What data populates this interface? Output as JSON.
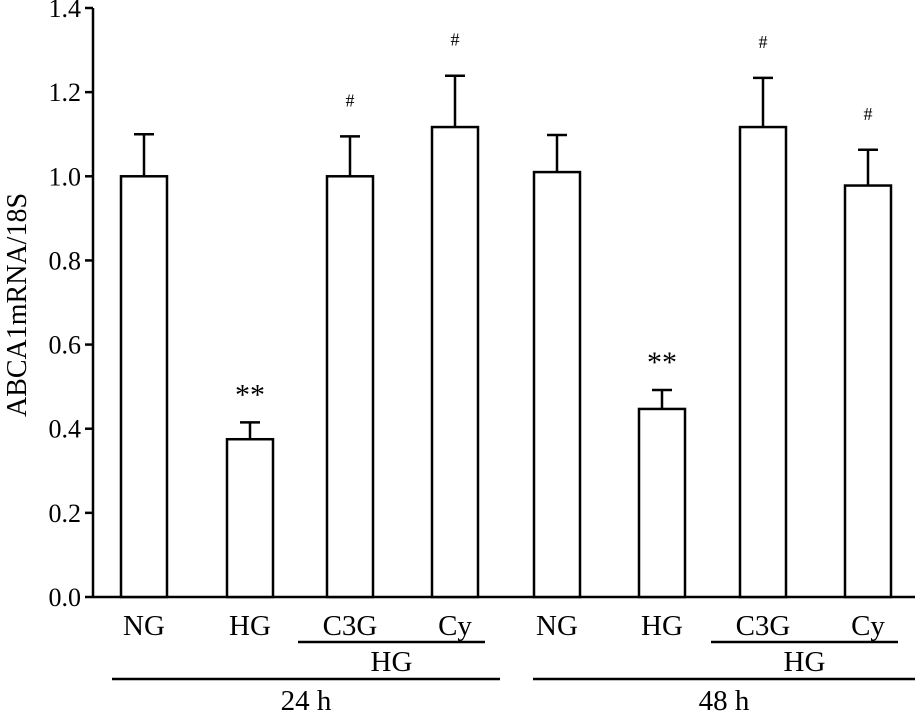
{
  "chart_data": {
    "type": "bar",
    "ylabel": "ABCA1mRNA/18S",
    "ylim": [
      0,
      1.4
    ],
    "yticks": [
      "0.0",
      "0.2",
      "0.4",
      "0.6",
      "0.8",
      "1.0",
      "1.2",
      "1.4"
    ],
    "categories": [
      "NG",
      "HG",
      "C3G",
      "Cy",
      "NG",
      "HG",
      "C3G",
      "Cy"
    ],
    "values": [
      1.0,
      0.375,
      1.0,
      1.117,
      1.01,
      0.447,
      1.117,
      0.978
    ],
    "errors": [
      0.1,
      0.04,
      0.095,
      0.122,
      0.088,
      0.045,
      0.117,
      0.085
    ],
    "annotations": [
      "",
      "**",
      "#",
      "#",
      "",
      "**",
      "#",
      "#"
    ],
    "bar_fill": "#ffffff",
    "bar_stroke": "#000000",
    "subgroups": [
      {
        "label": "HG",
        "span": [
          2,
          3
        ]
      },
      {
        "label": "HG",
        "span": [
          6,
          7
        ]
      }
    ],
    "groups": [
      {
        "label": "24 h",
        "span": [
          0,
          3
        ]
      },
      {
        "label": "48 h",
        "span": [
          4,
          7
        ]
      }
    ]
  }
}
